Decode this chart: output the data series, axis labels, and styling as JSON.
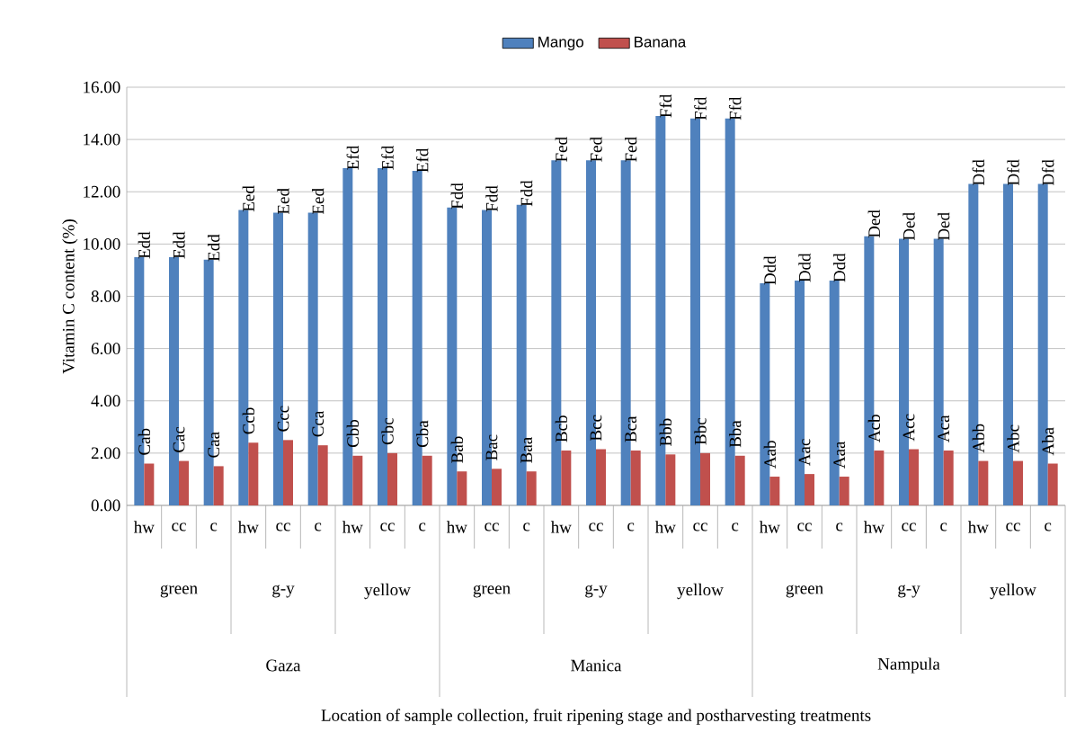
{
  "chart_data": {
    "type": "bar",
    "ylabel": "Vitamin C content (%)",
    "categories": [
      "hw",
      "cc",
      "c",
      "hw",
      "cc",
      "c",
      "hw",
      "cc",
      "c",
      "hw",
      "cc",
      "c",
      "hw",
      "cc",
      "c",
      "hw",
      "cc",
      "c",
      "hw",
      "cc",
      "c",
      "hw",
      "cc",
      "c",
      "hw",
      "cc",
      "c"
    ],
    "annotations": [
      "green",
      "g-y",
      "yellow",
      "green",
      "g-y",
      "yellow",
      "green",
      "g-y",
      "yellow",
      "Gaza",
      "Manica",
      "Nampula",
      "Location of sample collection, fruit ripening stage and postharvesting treatments"
    ],
    "series": [
      {
        "name": "Mango",
        "color": "#4f81bd",
        "values": [
          9.5,
          9.5,
          9.4,
          11.3,
          11.2,
          11.2,
          12.9,
          12.9,
          12.8,
          11.4,
          11.3,
          11.5,
          13.2,
          13.2,
          13.2,
          14.9,
          14.8,
          14.8,
          8.5,
          8.6,
          8.6,
          10.3,
          10.2,
          10.2,
          12.3,
          12.3,
          12.3
        ],
        "value_labels": [
          "Edd",
          "Edd",
          "Edd",
          "Eed",
          "Eed",
          "Eed",
          "Efd",
          "Efd",
          "Efd",
          "Fdd",
          "Fdd",
          "Fdd",
          "Fed",
          "Fed",
          "Fed",
          "Ffd",
          "Ffd",
          "Ffd",
          "Ddd",
          "Ddd",
          "Ddd",
          "Ded",
          "Ded",
          "Ded",
          "Dfd",
          "Dfd",
          "Dfd"
        ]
      },
      {
        "name": "Banana",
        "color": "#c0504d",
        "values": [
          1.6,
          1.7,
          1.5,
          2.4,
          2.5,
          2.3,
          1.9,
          2.0,
          1.9,
          1.3,
          1.4,
          1.3,
          2.1,
          2.15,
          2.1,
          1.95,
          2.0,
          1.9,
          1.1,
          1.2,
          1.1,
          2.1,
          2.15,
          2.1,
          1.7,
          1.7,
          1.6
        ],
        "value_labels": [
          "Cab",
          "Cac",
          "Caa",
          "Ccb",
          "Ccc",
          "Cca",
          "Cbb",
          "Cbc",
          "Cba",
          "Bab",
          "Bac",
          "Baa",
          "Bcb",
          "Bcc",
          "Bca",
          "Bbb",
          "Bbc",
          "Bba",
          "Aab",
          "Aac",
          "Aaa",
          "Acb",
          "Acc",
          "Aca",
          "Abb",
          "Abc",
          "Aba"
        ]
      }
    ],
    "ylim": [
      0,
      16
    ],
    "yticks": [
      {
        "value": 0,
        "label": "0.00"
      },
      {
        "value": 2,
        "label": "2.00"
      },
      {
        "value": 4,
        "label": "4.00"
      },
      {
        "value": 6,
        "label": "6.00"
      },
      {
        "value": 8,
        "label": "8.00"
      },
      {
        "value": 10,
        "label": "10.00"
      },
      {
        "value": 12,
        "label": "12.00"
      },
      {
        "value": 14,
        "label": "14.00"
      },
      {
        "value": 16,
        "label": "16.00"
      }
    ],
    "grid": "y",
    "legend": "top"
  }
}
